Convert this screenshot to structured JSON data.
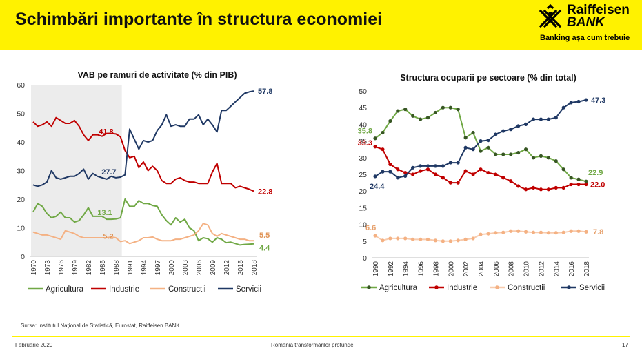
{
  "header": {
    "title": "Schimbări importante în structura economiei",
    "logo": {
      "line1": "Raiffeisen",
      "line2": "BANK",
      "tagline": "Banking așa cum trebuie"
    }
  },
  "colors": {
    "header_bg": "#fff200",
    "agricultura": "#70a845",
    "industrie": "#c00000",
    "constructii": "#f4b183",
    "servicii": "#1f3864",
    "shade": "#ececec"
  },
  "source": "Sursa: Institutul Național de Statistică, Eurostat, Raiffeisen BANK",
  "footer": {
    "date": "Februarie 2020",
    "center": "România transformărilor profunde",
    "page": "17"
  },
  "chart_data": [
    {
      "type": "line",
      "title": "VAB pe ramuri de activitate (% din PIB)",
      "xlabel": "",
      "ylabel": "",
      "ylim": [
        0,
        60
      ],
      "yticks": [
        "0",
        "10",
        "20",
        "30",
        "40",
        "50",
        "60"
      ],
      "x": [
        1970,
        1971,
        1972,
        1973,
        1974,
        1975,
        1976,
        1977,
        1978,
        1979,
        1980,
        1981,
        1982,
        1983,
        1984,
        1985,
        1986,
        1987,
        1988,
        1989,
        1990,
        1991,
        1992,
        1993,
        1994,
        1995,
        1996,
        1997,
        1998,
        1999,
        2000,
        2001,
        2002,
        2003,
        2004,
        2005,
        2006,
        2007,
        2008,
        2009,
        2010,
        2011,
        2012,
        2013,
        2014,
        2015,
        2016,
        2017,
        2018
      ],
      "xtick_labels": [
        "1970",
        "1973",
        "1976",
        "1979",
        "1982",
        "1985",
        "1988",
        "1991",
        "1994",
        "1997",
        "2000",
        "2003",
        "2006",
        "2009",
        "2012",
        "2015",
        "2018"
      ],
      "shaded_range": [
        1970,
        1989
      ],
      "series": [
        {
          "name": "Agricultura",
          "color": "#70a845",
          "values": [
            15.5,
            18.5,
            17.5,
            15,
            13.5,
            14,
            15.5,
            13.5,
            13.5,
            12,
            12.5,
            14.5,
            17,
            14,
            14,
            14,
            13,
            13,
            13.1,
            13.5,
            20,
            17.5,
            17.5,
            19.5,
            18.5,
            18.5,
            17.8,
            17.5,
            14.5,
            12.5,
            11,
            13.5,
            12,
            13,
            10,
            9,
            5.5,
            6.5,
            6.2,
            5,
            6.5,
            6,
            4.8,
            5,
            4.5,
            4,
            4.2,
            4.3,
            4.4
          ]
        },
        {
          "name": "Industrie",
          "color": "#c00000",
          "values": [
            47,
            45.5,
            46,
            47,
            45.5,
            48.5,
            47.5,
            46.5,
            46.5,
            47.5,
            45.5,
            42.5,
            40.5,
            42.5,
            42.5,
            42,
            43,
            43,
            42.8,
            41.8,
            37,
            34.5,
            35,
            31,
            33,
            30,
            31.5,
            30,
            26.5,
            25.5,
            25.5,
            27,
            27.5,
            26.5,
            26,
            26,
            25.5,
            25.5,
            25.5,
            29.5,
            32.5,
            25.5,
            25.5,
            25.5,
            24,
            24.5,
            24,
            23.5,
            22.8
          ]
        },
        {
          "name": "Constructii",
          "color": "#f4b183",
          "values": [
            8.5,
            8,
            7.5,
            7.5,
            7,
            6.5,
            6,
            9,
            8.5,
            8,
            7,
            6.5,
            6.5,
            6.5,
            6.5,
            6.5,
            6.5,
            6.8,
            6.5,
            5.2,
            5.5,
            4.5,
            5,
            5.5,
            6.5,
            6.5,
            6.8,
            6,
            5.5,
            5.5,
            5.5,
            6,
            6,
            6.5,
            7,
            7.5,
            9,
            11.5,
            11,
            8,
            7,
            8,
            7.5,
            7,
            6.5,
            6,
            6,
            5.5,
            5.5
          ]
        },
        {
          "name": "Servicii",
          "color": "#1f3864",
          "values": [
            25,
            24.5,
            25,
            26,
            30,
            27.5,
            27,
            27.5,
            28,
            28,
            29,
            30.5,
            27,
            29,
            28,
            27.5,
            27,
            28,
            27.5,
            27.7,
            28.5,
            44.5,
            41,
            37.5,
            40.5,
            40,
            40.5,
            44,
            46,
            49.5,
            45.5,
            46,
            45.5,
            45.5,
            48,
            48,
            49.5,
            46,
            48,
            46,
            43.5,
            51,
            51,
            52.5,
            54,
            55.5,
            57,
            57.5,
            57.8
          ]
        }
      ],
      "annotations": [
        {
          "text": "41.8",
          "series": "Industrie",
          "x": 1989
        },
        {
          "text": "27.7",
          "series": "Servicii",
          "x": 1989
        },
        {
          "text": "13.1",
          "series": "Agricultura",
          "x": 1989
        },
        {
          "text": "5.2",
          "series": "Constructii",
          "x": 1989
        },
        {
          "text": "57.8",
          "series": "Servicii",
          "x": 2018
        },
        {
          "text": "22.8",
          "series": "Industrie",
          "x": 2018
        },
        {
          "text": "5.5",
          "series": "Constructii",
          "x": 2018
        },
        {
          "text": "4.4",
          "series": "Agricultura",
          "x": 2018
        }
      ],
      "legend": "bottom"
    },
    {
      "type": "line",
      "title": "Structura ocuparii pe sectoare (% din total)",
      "xlabel": "",
      "ylabel": "",
      "ylim": [
        0,
        50
      ],
      "yticks": [
        "0",
        "5",
        "10",
        "15",
        "20",
        "25",
        "30",
        "35",
        "40",
        "45",
        "50"
      ],
      "x": [
        1990,
        1991,
        1992,
        1993,
        1994,
        1995,
        1996,
        1997,
        1998,
        1999,
        2000,
        2001,
        2002,
        2003,
        2004,
        2005,
        2006,
        2007,
        2008,
        2009,
        2010,
        2011,
        2012,
        2013,
        2014,
        2015,
        2016,
        2017,
        2018
      ],
      "xtick_labels": [
        "1990",
        "1992",
        "1994",
        "1996",
        "1998",
        "2000",
        "2002",
        "2004",
        "2006",
        "2008",
        "2010",
        "2012",
        "2014",
        "2016",
        "2018"
      ],
      "markers": true,
      "series": [
        {
          "name": "Agricultura",
          "color": "#70a845",
          "marker_color": "#375623",
          "values": [
            35.8,
            37.5,
            41,
            44,
            44.5,
            42.5,
            41.5,
            42,
            43.5,
            45,
            45,
            44.5,
            36,
            37.5,
            32,
            33,
            31,
            31,
            31,
            31.5,
            32.5,
            30,
            30.5,
            30,
            29,
            26.5,
            24,
            23.5,
            22.9
          ]
        },
        {
          "name": "Industrie",
          "color": "#c00000",
          "marker_color": "#c00000",
          "values": [
            33.3,
            32.5,
            28,
            26.5,
            25.5,
            25,
            26,
            26.5,
            25,
            24,
            22.5,
            22.5,
            26,
            25,
            26.5,
            25.5,
            25,
            24,
            23,
            21.5,
            20.5,
            21,
            20.5,
            20.5,
            21,
            21,
            22,
            22,
            22
          ]
        },
        {
          "name": "Constructii",
          "color": "#f8cbad",
          "marker_color": "#f4b183",
          "values": [
            6.6,
            5.2,
            5.8,
            5.8,
            5.8,
            5.5,
            5.5,
            5.5,
            5.2,
            5,
            5,
            5.2,
            5.5,
            5.8,
            7,
            7.2,
            7.5,
            7.6,
            8,
            8,
            7.8,
            7.6,
            7.6,
            7.5,
            7.5,
            7.6,
            8,
            8,
            7.8
          ]
        },
        {
          "name": "Servicii",
          "color": "#1f3864",
          "marker_color": "#1f3864",
          "values": [
            24.4,
            25.8,
            25.8,
            24,
            24.5,
            27,
            27.5,
            27.5,
            27.5,
            27.5,
            28.5,
            28.5,
            33,
            32.5,
            35,
            35.2,
            37,
            38,
            38.5,
            39.5,
            40,
            41.5,
            41.5,
            41.5,
            42,
            45,
            46.5,
            46.8,
            47.3
          ]
        }
      ],
      "annotations": [
        {
          "text": "35.8",
          "series": "Agricultura",
          "x": 1990
        },
        {
          "text": "33.3",
          "series": "Industrie",
          "x": 1990
        },
        {
          "text": "24.4",
          "series": "Servicii",
          "x": 1990
        },
        {
          "text": "6.6",
          "series": "Constructii",
          "x": 1990
        },
        {
          "text": "47.3",
          "series": "Servicii",
          "x": 2018
        },
        {
          "text": "22.9",
          "series": "Agricultura",
          "x": 2018
        },
        {
          "text": "22.0",
          "series": "Industrie",
          "x": 2018
        },
        {
          "text": "7.8",
          "series": "Constructii",
          "x": 2018
        }
      ],
      "legend": "bottom"
    }
  ]
}
